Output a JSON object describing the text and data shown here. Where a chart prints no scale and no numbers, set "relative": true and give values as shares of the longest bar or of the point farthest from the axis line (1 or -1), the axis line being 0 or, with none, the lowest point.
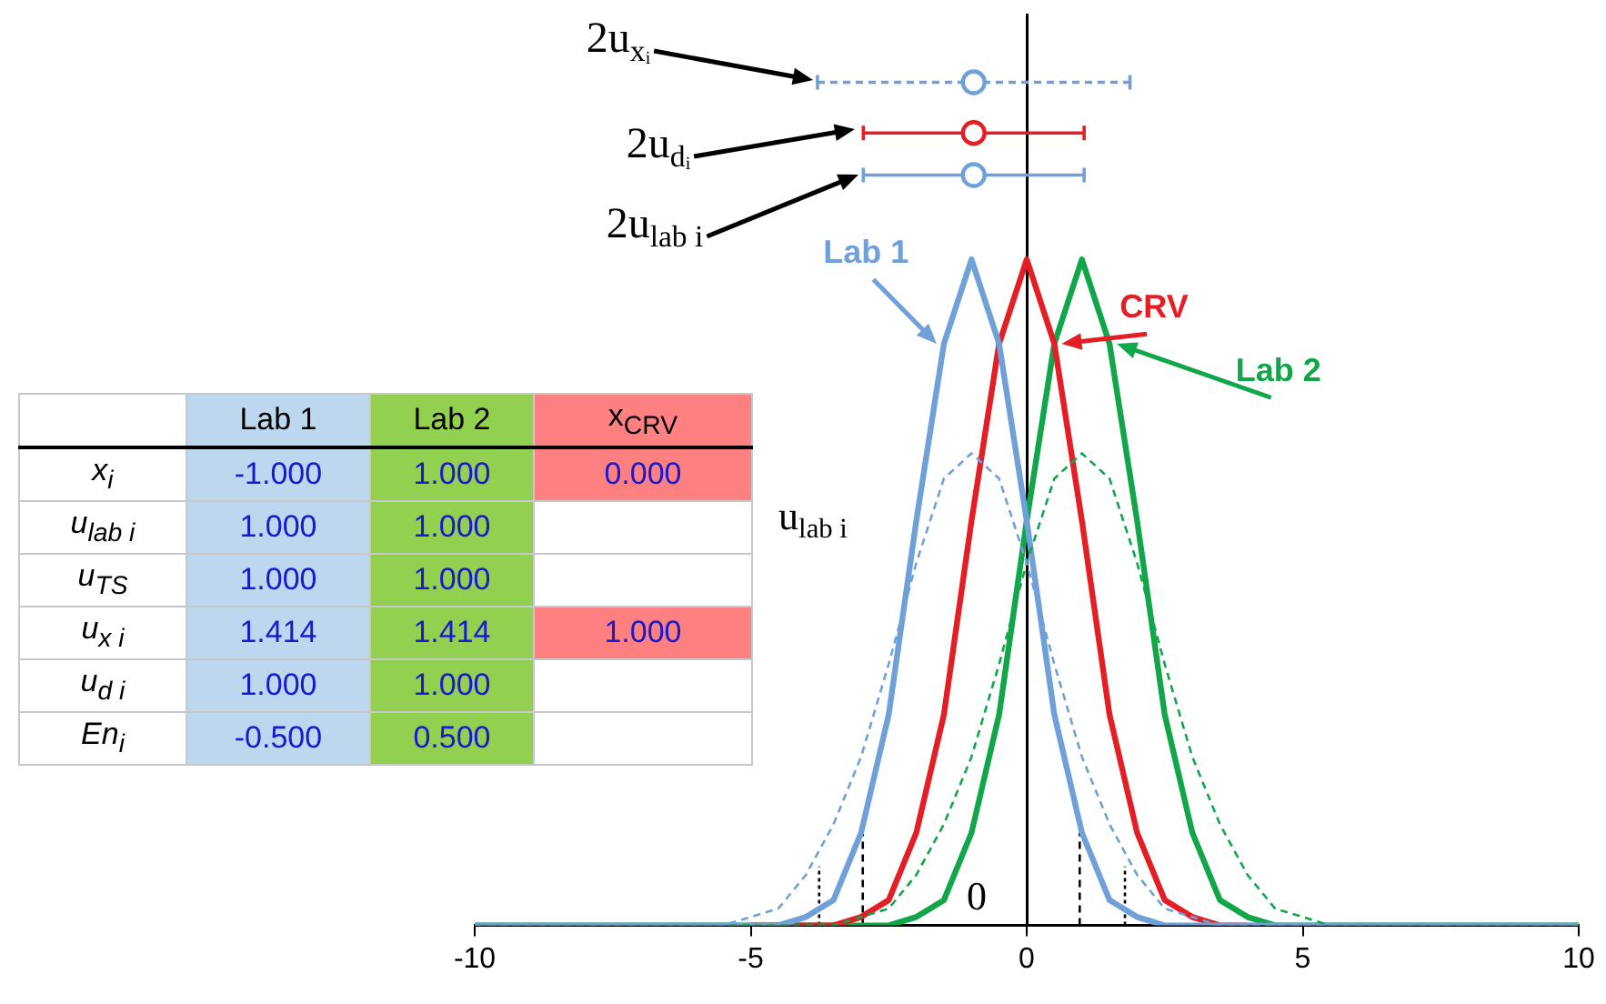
{
  "chart_data": [
    {
      "type": "line",
      "relative": true,
      "tick_labels": "x",
      "marker": "none",
      "xlim": [
        -10,
        10
      ],
      "xticks": [
        -10,
        -5,
        0,
        5,
        10
      ],
      "x": [
        -10,
        -6,
        -5.5,
        -5,
        -4.5,
        -4,
        -3.5,
        -3,
        -2.5,
        -2,
        -1.5,
        -1,
        -0.5,
        0,
        0.5,
        1,
        1.5,
        2,
        2.5,
        3,
        3.5,
        4,
        4.5,
        5,
        5.5,
        6,
        10
      ],
      "series": [
        {
          "color": "#6fa1d8",
          "line_style": "dashed",
          "values": [
            0,
            0,
            0,
            0.01,
            0.02,
            0.06,
            0.12,
            0.2,
            0.31,
            0.43,
            0.53,
            0.56,
            0.53,
            0.43,
            0.31,
            0.2,
            0.12,
            0.06,
            0.02,
            0.01,
            0,
            0,
            0,
            0,
            0,
            0,
            0
          ]
        },
        {
          "color": "#12a64a",
          "line_style": "dashed",
          "values": [
            0,
            0,
            0,
            0,
            0,
            0,
            0,
            0.01,
            0.02,
            0.06,
            0.12,
            0.2,
            0.31,
            0.43,
            0.53,
            0.56,
            0.53,
            0.43,
            0.31,
            0.2,
            0.12,
            0.06,
            0.02,
            0.01,
            0,
            0,
            0
          ]
        },
        {
          "name": "Lab 1",
          "color": "#6fa1d8",
          "values": [
            0,
            0,
            0,
            0,
            0,
            0.01,
            0.03,
            0.11,
            0.25,
            0.48,
            0.69,
            0.79,
            0.69,
            0.48,
            0.25,
            0.11,
            0.03,
            0.01,
            0,
            0,
            0,
            0,
            0,
            0,
            0,
            0,
            0
          ]
        },
        {
          "name": "CRV",
          "color": "#e31e24",
          "values": [
            null,
            null,
            null,
            0,
            0,
            0,
            0,
            0.01,
            0.03,
            0.11,
            0.25,
            0.48,
            0.69,
            0.79,
            0.69,
            0.48,
            0.25,
            0.11,
            0.03,
            0.01,
            0,
            0,
            null,
            null,
            null,
            null,
            null
          ]
        },
        {
          "name": "Lab 2",
          "color": "#12a64a",
          "values": [
            0,
            0,
            0,
            0,
            0,
            0,
            0,
            0,
            0,
            0.01,
            0.03,
            0.11,
            0.25,
            0.48,
            0.69,
            0.79,
            0.69,
            0.48,
            0.25,
            0.11,
            0.03,
            0.01,
            0,
            0,
            0,
            0,
            0
          ]
        },
        {
          "color": "#000000",
          "line_style": "dashed",
          "x": [
            -2.97,
            -2.97
          ],
          "values": [
            0,
            0.11
          ]
        },
        {
          "color": "#000000",
          "line_style": "dotted",
          "x": [
            -3.76,
            -3.76
          ],
          "values": [
            0,
            0.07
          ]
        },
        {
          "color": "#000000",
          "line_style": "dashed",
          "x": [
            0.96,
            0.96
          ],
          "values": [
            0,
            0.11
          ]
        },
        {
          "color": "#000000",
          "line_style": "dotted",
          "x": [
            1.78,
            1.78
          ],
          "values": [
            0,
            0.07
          ]
        },
        {
          "type": "scatter",
          "marker": "circle",
          "color": "#6fa1d8",
          "line_style": "dashed",
          "x": [
            -0.96
          ],
          "values": [
            1
          ],
          "xerrors": [
            2.83
          ]
        },
        {
          "type": "scatter",
          "marker": "circle",
          "color": "#e31e24",
          "x": [
            -0.96
          ],
          "values": [
            0.94
          ],
          "xerrors": [
            2
          ]
        },
        {
          "type": "scatter",
          "marker": "circle",
          "color": "#6fa1d8",
          "x": [
            -0.96
          ],
          "values": [
            0.89
          ],
          "xerrors": [
            2
          ]
        }
      ],
      "annotations": [
        "2u$_{xᵢ}$",
        "2u$_{dᵢ}$",
        "2u$_{lab i}$",
        "u$_{lab i}$",
        "0"
      ]
    },
    {
      "type": "other",
      "categories": [
        "Lab 1",
        "Lab 2",
        "x$_{CRV}$"
      ],
      "y_categories": [
        "x$_{i}$",
        "u$_{lab i}$",
        "u$_{TS}$",
        "u$_{x i}$",
        "u$_{d i}$",
        "En$_{i}$"
      ],
      "colors": [
        "#bdd7ee",
        "#92d050",
        "#ff8080"
      ],
      "cell_labels": [
        [
          "-1.000",
          "1.000",
          "0.000"
        ],
        [
          "1.000",
          "1.000",
          null
        ],
        [
          "1.000",
          "1.000",
          null
        ],
        [
          "1.414",
          "1.414",
          "1.000"
        ],
        [
          "1.000",
          "1.000",
          null
        ],
        [
          "-0.500",
          "0.500",
          null
        ]
      ]
    }
  ]
}
